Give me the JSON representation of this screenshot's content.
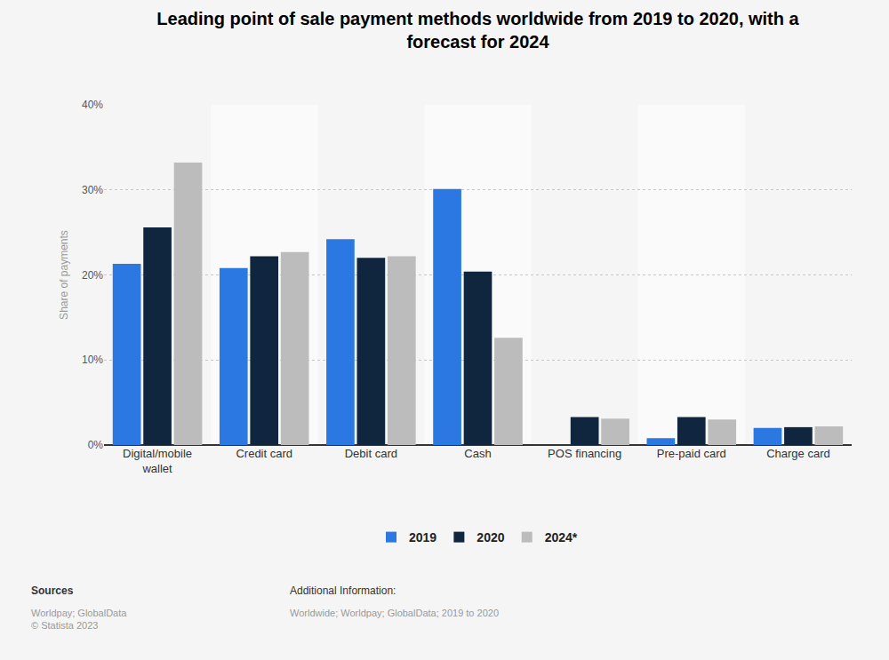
{
  "chart_data": {
    "type": "bar",
    "title": "Leading point of sale payment methods worldwide from 2019 to 2020, with a forecast for 2024",
    "y_label": "Share of payments",
    "categories": [
      "Digital/mobile wallet",
      "Credit card",
      "Debit card",
      "Cash",
      "POS financing",
      "Pre-paid card",
      "Charge card"
    ],
    "series": [
      {
        "name": "2019",
        "color": "#2b78e3",
        "values": [
          21.3,
          20.8,
          24.2,
          30.1,
          null,
          0.8,
          2.0
        ]
      },
      {
        "name": "2020",
        "color": "#10263f",
        "values": [
          25.6,
          22.2,
          22.0,
          20.4,
          3.3,
          3.3,
          2.1
        ]
      },
      {
        "name": "2024*",
        "color": "#bcbcbc",
        "values": [
          33.2,
          22.7,
          22.2,
          12.6,
          3.1,
          3.0,
          2.2
        ]
      }
    ],
    "ylim": [
      0,
      40
    ],
    "yticks": [
      {
        "value": 0,
        "label": "0%"
      },
      {
        "value": 10,
        "label": "10%"
      },
      {
        "value": 20,
        "label": "20%"
      },
      {
        "value": 30,
        "label": "30%"
      },
      {
        "value": 40,
        "label": "40%"
      }
    ],
    "grid": true,
    "legend": "bottom",
    "footer": {
      "sources_title": "Sources",
      "sources": [
        "Worldpay; GlobalData",
        "© Statista 2023"
      ],
      "additional_title": "Additional Information:",
      "additional": "Worldwide; Worldpay; GlobalData; 2019 to 2020"
    }
  }
}
